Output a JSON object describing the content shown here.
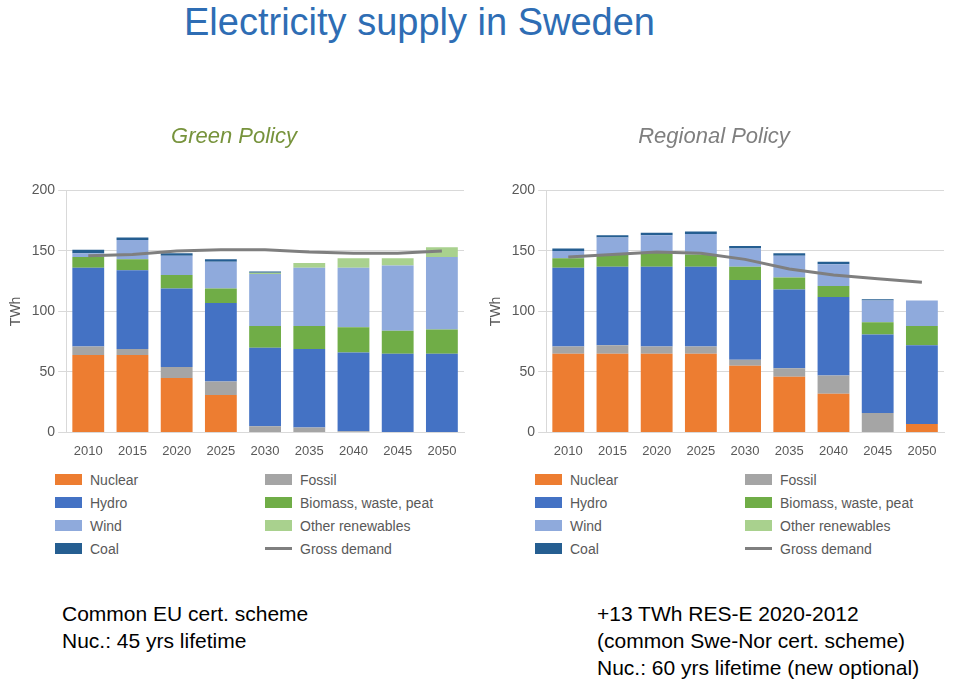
{
  "title": "Electricity supply in Sweden",
  "chart_data": [
    {
      "type": "bar",
      "title": "Green Policy",
      "y_label": "TWh",
      "stacked": true,
      "grid": true,
      "legend": "bottom",
      "categories": [
        "2010",
        "2015",
        "2020",
        "2025",
        "2030",
        "2035",
        "2040",
        "2045",
        "2050"
      ],
      "ylim": [
        0,
        200
      ],
      "yticks": [
        0,
        50,
        100,
        150,
        200
      ],
      "series": [
        {
          "name": "Nuclear",
          "color": "#ed7d31",
          "values": [
            64,
            64,
            45,
            31,
            0,
            0,
            0,
            0,
            0
          ]
        },
        {
          "name": "Fossil",
          "color": "#a5a5a5",
          "values": [
            7,
            5,
            9,
            11,
            5,
            4,
            1,
            0,
            0
          ]
        },
        {
          "name": "Hydro",
          "color": "#4472c4",
          "values": [
            65,
            65,
            65,
            65,
            65,
            65,
            65,
            65,
            65
          ]
        },
        {
          "name": "Biomass, waste, peat",
          "color": "#70ad47",
          "values": [
            9,
            9,
            11,
            12,
            18,
            19,
            21,
            19,
            20
          ]
        },
        {
          "name": "Wind",
          "color": "#8faadc",
          "values": [
            3,
            16,
            16,
            22,
            43,
            48,
            49,
            54,
            60
          ]
        },
        {
          "name": "Other renewables",
          "color": "#a9d18e",
          "values": [
            0,
            0,
            0,
            0,
            1,
            4,
            8,
            6,
            8
          ]
        },
        {
          "name": "Coal",
          "color": "#255e91",
          "values": [
            3,
            2,
            2,
            2,
            1,
            0,
            0,
            0,
            0
          ]
        },
        {
          "name": "Gross demand",
          "color": "#7f7f7f",
          "type": "line",
          "values": [
            146,
            147,
            150,
            151,
            151,
            149,
            148,
            148,
            150
          ]
        }
      ],
      "notes": [
        "Common EU cert. scheme",
        "Nuc.: 45 yrs lifetime"
      ]
    },
    {
      "type": "bar",
      "title": "Regional Policy",
      "y_label": "TWh",
      "stacked": true,
      "grid": true,
      "legend": "bottom",
      "categories": [
        "2010",
        "2015",
        "2020",
        "2025",
        "2030",
        "2035",
        "2040",
        "2045",
        "2050"
      ],
      "ylim": [
        0,
        200
      ],
      "yticks": [
        0,
        50,
        100,
        150,
        200
      ],
      "series": [
        {
          "name": "Nuclear",
          "color": "#ed7d31",
          "values": [
            65,
            65,
            65,
            65,
            55,
            46,
            32,
            0,
            7
          ]
        },
        {
          "name": "Fossil",
          "color": "#a5a5a5",
          "values": [
            6,
            7,
            6,
            6,
            5,
            7,
            15,
            16,
            0
          ]
        },
        {
          "name": "Hydro",
          "color": "#4472c4",
          "values": [
            65,
            65,
            66,
            66,
            66,
            65,
            65,
            65,
            65
          ]
        },
        {
          "name": "Biomass, waste, peat",
          "color": "#70ad47",
          "values": [
            8,
            10,
            12,
            10,
            11,
            10,
            9,
            10,
            16
          ]
        },
        {
          "name": "Wind",
          "color": "#8faadc",
          "values": [
            6,
            14,
            14,
            17,
            15,
            18,
            18,
            18,
            21
          ]
        },
        {
          "name": "Other renewables",
          "color": "#a9d18e",
          "values": [
            0,
            0,
            0,
            0,
            0,
            0,
            0,
            0,
            0
          ]
        },
        {
          "name": "Coal",
          "color": "#255e91",
          "values": [
            2,
            2,
            2,
            2,
            2,
            2,
            2,
            1,
            0
          ]
        },
        {
          "name": "Gross demand",
          "color": "#7f7f7f",
          "type": "line",
          "values": [
            145,
            147,
            149,
            148,
            143,
            135,
            130,
            127,
            124
          ]
        }
      ],
      "notes": [
        "+13 TWh RES-E 2020-2012",
        "(common Swe-Nor cert. scheme)",
        "Nuc.: 60 yrs lifetime (new optional)"
      ]
    }
  ]
}
